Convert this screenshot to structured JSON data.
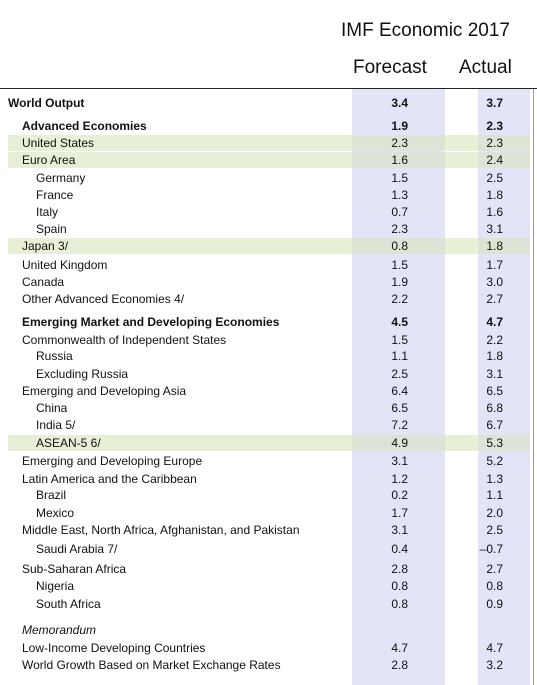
{
  "header": {
    "title": "IMF Economic 2017",
    "columns": [
      "Forecast",
      "Actual"
    ]
  },
  "table": {
    "rows": [
      [
        "World Output",
        "3.4",
        "3.7"
      ],
      [
        "Advanced Economies",
        "1.9",
        "2.3"
      ],
      [
        "United States",
        "2.3",
        "2.3"
      ],
      [
        "Euro Area",
        "1.6",
        "2.4"
      ],
      [
        "Germany",
        "1.5",
        "2.5"
      ],
      [
        "France",
        "1.3",
        "1.8"
      ],
      [
        "Italy",
        "0.7",
        "1.6"
      ],
      [
        "Spain",
        "2.3",
        "3.1"
      ],
      [
        "Japan 3/",
        "0.8",
        "1.8"
      ],
      [
        "United Kingdom",
        "1.5",
        "1.7"
      ],
      [
        "Canada",
        "1.9",
        "3.0"
      ],
      [
        "Other Advanced Economies 4/",
        "2.2",
        "2.7"
      ],
      [
        "Emerging Market and Developing Economies",
        "4.5",
        "4.7"
      ],
      [
        "Commonwealth of Independent States",
        "1.5",
        "2.2"
      ],
      [
        "Russia",
        "1.1",
        "1.8"
      ],
      [
        "Excluding Russia",
        "2.5",
        "3.1"
      ],
      [
        "Emerging and Developing Asia",
        "6.4",
        "6.5"
      ],
      [
        "China",
        "6.5",
        "6.8"
      ],
      [
        "India 5/",
        "7.2",
        "6.7"
      ],
      [
        "ASEAN-5 6/",
        "4.9",
        "5.3"
      ],
      [
        "Emerging and Developing Europe",
        "3.1",
        "5.2"
      ],
      [
        "Latin America and the Caribbean",
        "1.2",
        "1.3"
      ],
      [
        "Brazil",
        "0.2",
        "1.1"
      ],
      [
        "Mexico",
        "1.7",
        "2.0"
      ],
      [
        "Middle East, North Africa, Afghanistan, and Pakistan",
        "3.1",
        "2.5"
      ],
      [
        "Saudi Arabia 7/",
        "0.4",
        "–0.7"
      ],
      [
        "Sub-Saharan Africa",
        "2.8",
        "2.7"
      ],
      [
        "Nigeria",
        "0.8",
        "0.8"
      ],
      [
        "South Africa",
        "0.8",
        "0.9"
      ],
      [
        "Memorandum"
      ],
      [
        "Low-Income Developing Countries",
        "4.7",
        "4.7"
      ],
      [
        "World Growth Based on Market Exchange Rates",
        "2.8",
        "3.2"
      ]
    ]
  }
}
